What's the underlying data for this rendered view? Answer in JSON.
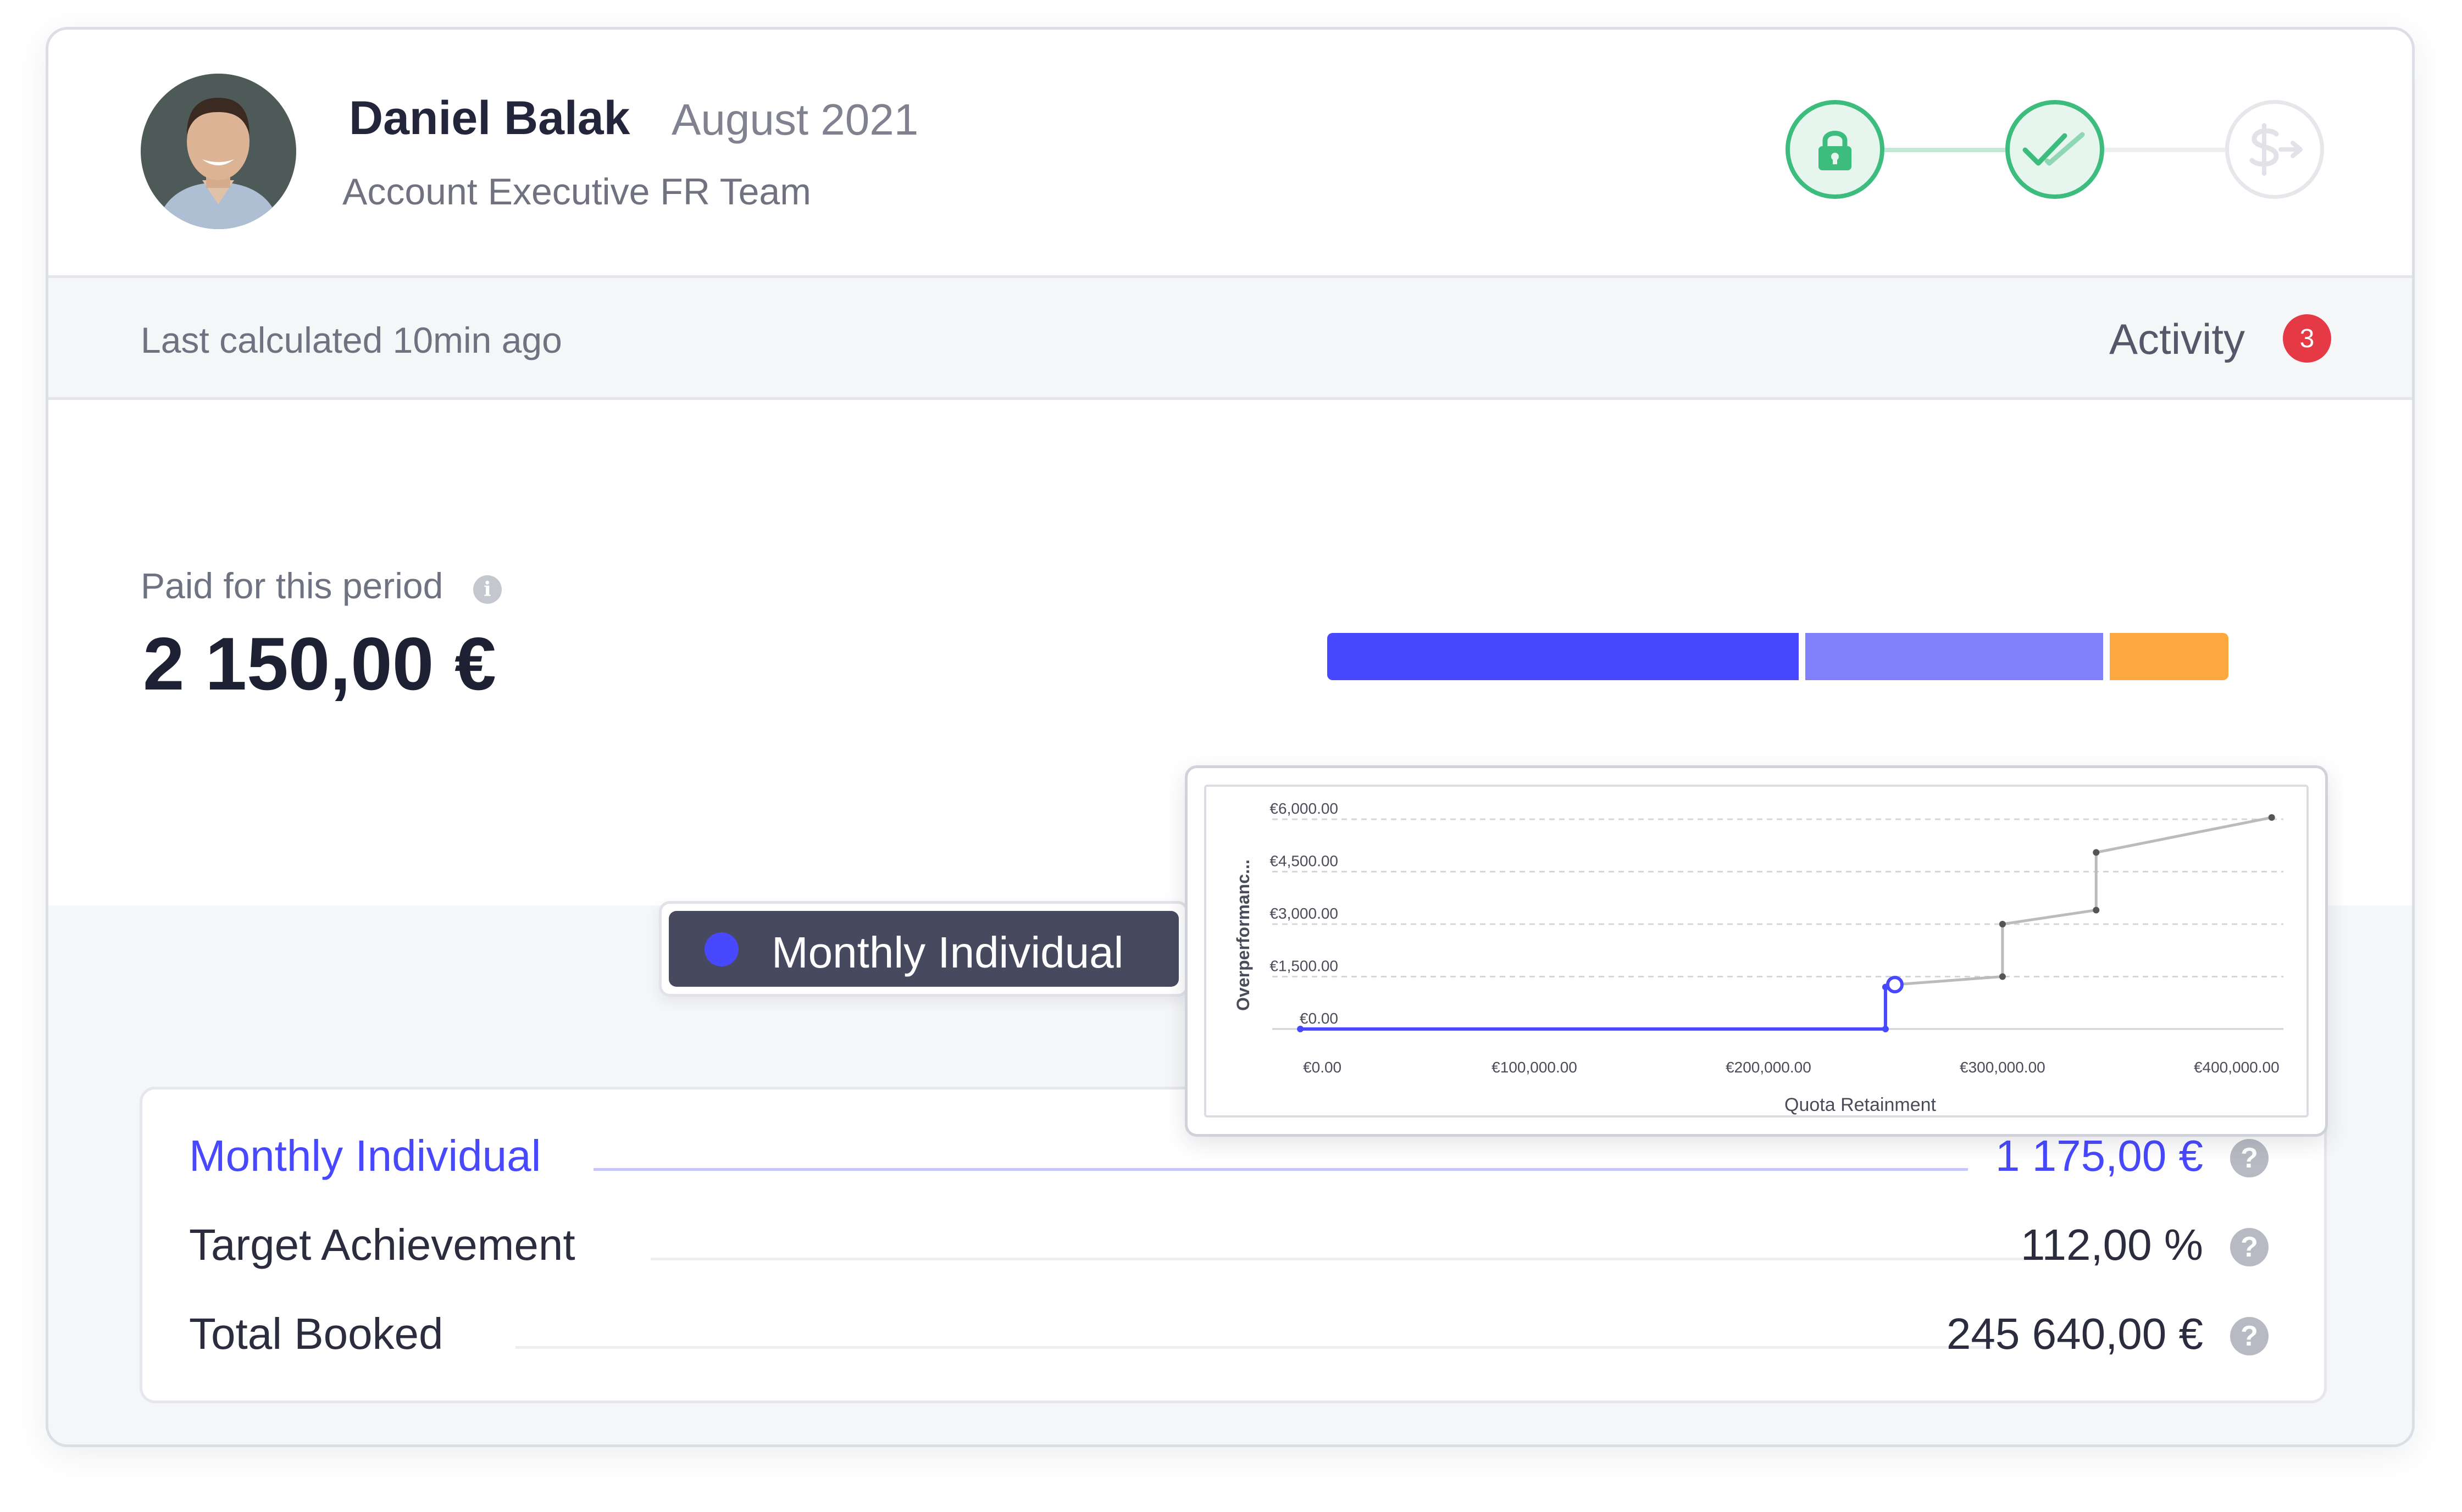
{
  "user": {
    "name": "Daniel Balak",
    "period": "August 2021",
    "team": "Account Executive FR Team"
  },
  "status_steps": [
    {
      "icon": "lock-icon",
      "state": "complete"
    },
    {
      "icon": "double-check-icon",
      "state": "complete"
    },
    {
      "icon": "dollar-transfer-icon",
      "state": "pending"
    }
  ],
  "subbar": {
    "last_calculated": "Last calculated 10min ago",
    "activity_label": "Activity",
    "activity_count": "3"
  },
  "paid": {
    "label": "Paid for this period",
    "info_icon": "info-icon",
    "value": "2 150,00 €"
  },
  "breakdown_bar": {
    "segments": [
      {
        "name": "Monthly Individual",
        "color": "#4848fe",
        "share": 0.53
      },
      {
        "color": "#8080fa",
        "share": 0.33
      },
      {
        "color": "#fba93f",
        "share": 0.14
      }
    ]
  },
  "tooltip": {
    "label": "Monthly Individual",
    "dot_color": "#4848fe"
  },
  "chart_data": {
    "type": "line",
    "xlabel": "Quota Retainment",
    "ylabel": "Overperformanc...",
    "x_ticks": [
      "€0.00",
      "€100,000.00",
      "€200,000.00",
      "€300,000.00",
      "€400,000.00"
    ],
    "y_ticks": [
      "€0.00",
      "€1,500.00",
      "€3,000.00",
      "€4,500.00",
      "€6,000.00"
    ],
    "xlim": [
      -12000,
      420000
    ],
    "ylim": [
      -300,
      6300
    ],
    "grid": true,
    "series": [
      {
        "color": "#4848fe",
        "x": [
          0,
          250000,
          250000,
          254000
        ],
        "y": [
          0,
          0,
          1200,
          1270
        ]
      },
      {
        "color": "#bbbbbb",
        "x": [
          254000,
          300000,
          300000,
          340000,
          340000,
          415000
        ],
        "y": [
          1270,
          1500,
          3000,
          3400,
          5050,
          6050
        ]
      }
    ],
    "highlight": {
      "x": 254000,
      "y": 1270
    }
  },
  "summary_rows": [
    {
      "label": "Monthly Individual",
      "value": "1 175,00 €",
      "highlight": true
    },
    {
      "label": "Target Achievement",
      "value": "112,00 %",
      "highlight": false
    },
    {
      "label": "Total Booked",
      "value": "245 640,00 €",
      "highlight": false
    }
  ],
  "colors": {
    "accent": "#4848fe",
    "success": "#3dbd7d",
    "badge": "#e53945",
    "segment_alt": "#8080fa",
    "segment_warn": "#fba93f"
  }
}
